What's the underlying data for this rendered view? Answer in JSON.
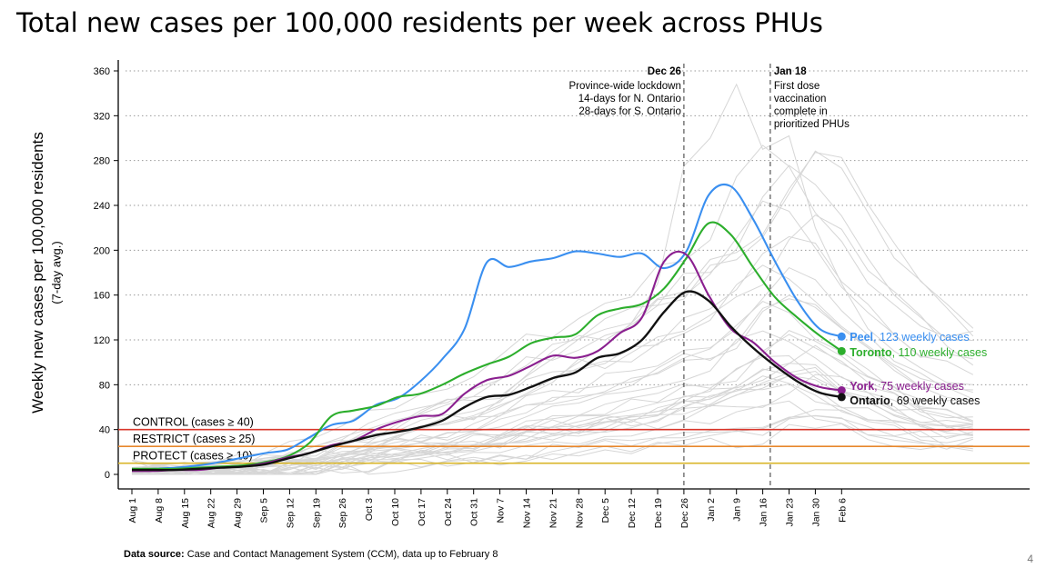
{
  "page": {
    "title": "Total new cases per 100,000 residents per week across PHUs",
    "footer_bold": "Data source:",
    "footer_text": " Case and Contact Management System (CCM), data up to February 8",
    "page_number": "4"
  },
  "chart_data": {
    "type": "line",
    "title": "Total new cases per 100,000 residents per week across PHUs",
    "ylabel": "Weekly new cases per 100,000 residents",
    "ylabel_sub": "(7-day avg.)",
    "xlabel": "",
    "ylim": [
      0,
      370
    ],
    "yticks": [
      0,
      40,
      80,
      120,
      160,
      200,
      240,
      280,
      320,
      360
    ],
    "x_ticks": [
      "Aug 1",
      "Aug 8",
      "Aug 15",
      "Aug 22",
      "Aug 29",
      "Sep 5",
      "Sep 12",
      "Sep 19",
      "Sep 26",
      "Oct 3",
      "Oct 10",
      "Oct 17",
      "Oct 24",
      "Oct 31",
      "Nov 7",
      "Nov 14",
      "Nov 21",
      "Nov 28",
      "Dec 5",
      "Dec 12",
      "Dec 19",
      "Dec 26",
      "Jan 2",
      "Jan 9",
      "Jan 16",
      "Jan 23",
      "Jan 30",
      "Feb 6"
    ],
    "grid": "horizontal dotted",
    "thresholds": [
      {
        "label": "CONTROL (cases ≥ 40)",
        "value": 40,
        "color": "#d9352a"
      },
      {
        "label": "RESTRICT (cases ≥ 25)",
        "value": 25,
        "color": "#e8872c"
      },
      {
        "label": "PROTECT (cases ≥ 10)",
        "value": 10,
        "color": "#d9b62a"
      }
    ],
    "annotations": [
      {
        "x": "Dec 26",
        "bold": "Dec 26",
        "lines": [
          "Province-wide lockdown",
          "14-days for N. Ontario",
          "28-days for S. Ontario"
        ]
      },
      {
        "x": "Jan 18",
        "bold": "Jan 18",
        "lines": [
          "First dose",
          "vaccination",
          "complete in",
          "prioritized PHUs"
        ]
      }
    ],
    "series": [
      {
        "name": "Peel",
        "label_rest": ", 123 weekly cases",
        "color": "#3a8ff0",
        "final": 123,
        "values": [
          4,
          5,
          6,
          8,
          11,
          15,
          19,
          22,
          33,
          44,
          48,
          62,
          68,
          83,
          103,
          130,
          189,
          185,
          190,
          193,
          199,
          197,
          194,
          197,
          184,
          199,
          249,
          257,
          228,
          190,
          155,
          130,
          123
        ]
      },
      {
        "name": "Toronto",
        "label_rest": ", 110 weekly cases",
        "color": "#2cae2c",
        "final": 110,
        "values": [
          5,
          5,
          5,
          6,
          7,
          8,
          11,
          16,
          28,
          52,
          57,
          61,
          69,
          72,
          80,
          90,
          98,
          105,
          117,
          122,
          125,
          142,
          148,
          152,
          166,
          193,
          224,
          214,
          185,
          158,
          140,
          124,
          110
        ]
      },
      {
        "name": "York",
        "label_rest": ", 75 weekly cases",
        "color": "#8a1f8f",
        "final": 75,
        "values": [
          3,
          3,
          4,
          4,
          6,
          7,
          10,
          15,
          19,
          26,
          30,
          40,
          47,
          52,
          54,
          72,
          84,
          88,
          97,
          106,
          104,
          110,
          126,
          140,
          190,
          196,
          160,
          130,
          118,
          100,
          86,
          78,
          75
        ]
      },
      {
        "name": "Ontario",
        "label_rest": ", 69 weekly cases",
        "color": "#111111",
        "final": 69,
        "values": [
          4,
          4,
          4,
          5,
          6,
          7,
          9,
          14,
          19,
          25,
          30,
          35,
          38,
          42,
          48,
          60,
          69,
          71,
          78,
          86,
          91,
          104,
          108,
          120,
          145,
          163,
          155,
          132,
          113,
          97,
          83,
          73,
          69
        ]
      }
    ]
  }
}
